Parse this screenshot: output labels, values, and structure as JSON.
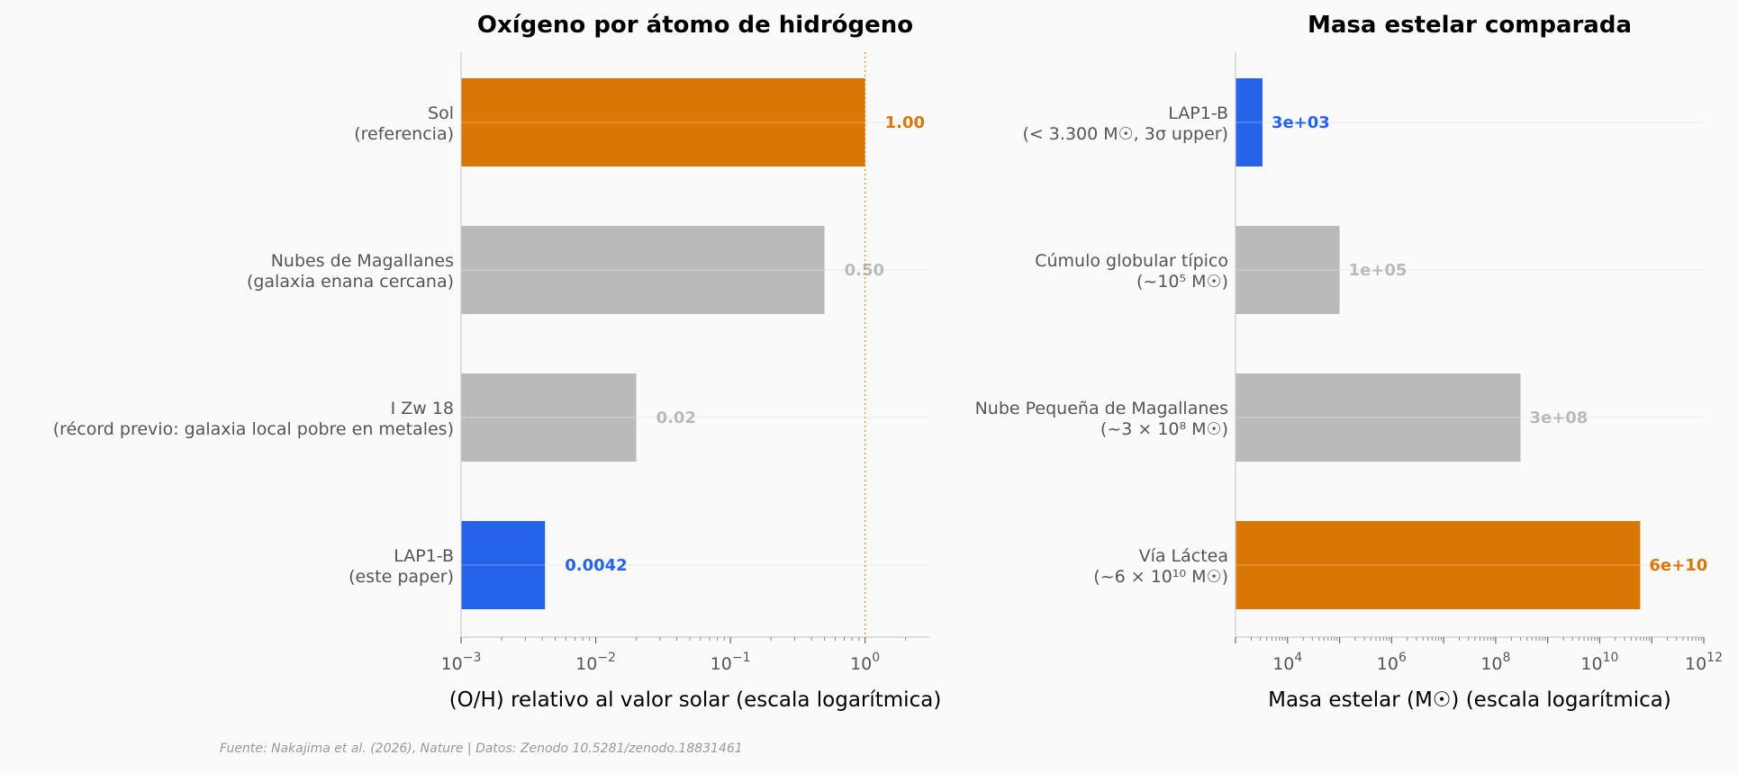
{
  "source_note": "Fuente: Nakajima et al. (2026), Nature | Datos: Zenodo 10.5281/zenodo.18831461",
  "colors": {
    "highlight_blue": "#2563eb",
    "reference_orange": "#d97706",
    "neutral_gray": "#bababa",
    "background": "#fafafa"
  },
  "chart_data": [
    {
      "type": "bar",
      "orientation": "horizontal",
      "title": "Oxígeno por átomo de hidrógeno",
      "xlabel": "(O/H) relativo al valor solar  (escala logarítmica)",
      "xscale": "log",
      "xlim": [
        0.001,
        3
      ],
      "xticks": [
        {
          "value": 0.001,
          "base": "10",
          "exp": "−3"
        },
        {
          "value": 0.01,
          "base": "10",
          "exp": "−2"
        },
        {
          "value": 0.1,
          "base": "10",
          "exp": "−1"
        },
        {
          "value": 1,
          "base": "10",
          "exp": "0"
        }
      ],
      "reference_line": 1,
      "grid": false,
      "categories": [
        {
          "lines": [
            "Sol",
            "(referencia)"
          ],
          "value": 1.0,
          "label": "1.00",
          "color": "#d97706"
        },
        {
          "lines": [
            "Nubes de Magallanes",
            "(galaxia enana cercana)"
          ],
          "value": 0.5,
          "label": "0.50",
          "color": "#bababa"
        },
        {
          "lines": [
            "I Zw 18",
            "(récord previo: galaxia local pobre en metales)"
          ],
          "value": 0.02,
          "label": "0.02",
          "color": "#bababa"
        },
        {
          "lines": [
            "LAP1-B",
            "(este paper)"
          ],
          "value": 0.0042,
          "label": "0.0042",
          "color": "#2563eb"
        }
      ]
    },
    {
      "type": "bar",
      "orientation": "horizontal",
      "title": "Masa estelar comparada",
      "xlabel": "Masa estelar (M☉)  (escala logarítmica)",
      "xscale": "log",
      "xlim": [
        1000,
        1000000000000
      ],
      "xticks": [
        {
          "value": 10000,
          "base": "10",
          "exp": "4"
        },
        {
          "value": 1000000,
          "base": "10",
          "exp": "6"
        },
        {
          "value": 100000000,
          "base": "10",
          "exp": "8"
        },
        {
          "value": 10000000000,
          "base": "10",
          "exp": "10"
        },
        {
          "value": 1000000000000,
          "base": "10",
          "exp": "12"
        }
      ],
      "grid": false,
      "categories": [
        {
          "lines": [
            "LAP1-B",
            "(< 3.300 M☉, 3σ upper)"
          ],
          "value": 3300,
          "label": "3e+03",
          "color": "#2563eb"
        },
        {
          "lines": [
            "Cúmulo globular típico",
            "(~10⁵ M☉)"
          ],
          "value": 100000,
          "label": "1e+05",
          "color": "#bababa"
        },
        {
          "lines": [
            "Nube Pequeña de Magallanes",
            "(~3 × 10⁸ M☉)"
          ],
          "value": 300000000,
          "label": "3e+08",
          "color": "#bababa"
        },
        {
          "lines": [
            "Vía Láctea",
            "(~6 × 10¹⁰ M☉)"
          ],
          "value": 60000000000,
          "label": "6e+10",
          "color": "#d97706"
        }
      ]
    }
  ]
}
